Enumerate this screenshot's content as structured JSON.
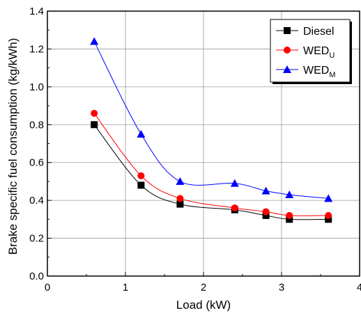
{
  "chart_data": {
    "type": "line",
    "xlabel": "Load (kW)",
    "ylabel": "Brake specific fuel consumption (kg/kWh)",
    "xlim": [
      0,
      4
    ],
    "ylim": [
      0.0,
      1.4
    ],
    "xticks": [
      0,
      1,
      2,
      3,
      4
    ],
    "xtick_labels": [
      "0",
      "1",
      "2",
      "3",
      "4"
    ],
    "yticks": [
      0.0,
      0.2,
      0.4,
      0.6,
      0.8,
      1.0,
      1.2,
      1.4
    ],
    "ytick_labels": [
      "0.0",
      "0.2",
      "0.4",
      "0.6",
      "0.8",
      "1.0",
      "1.2",
      "1.4"
    ],
    "grid": true,
    "legend_position": "top-right",
    "x": [
      0.6,
      1.2,
      1.7,
      2.4,
      2.8,
      3.1,
      3.6
    ],
    "series": [
      {
        "name": "Diesel",
        "name_sub": "",
        "marker": "square",
        "color": "#000000",
        "values": [
          0.8,
          0.48,
          0.38,
          0.35,
          0.32,
          0.3,
          0.3
        ]
      },
      {
        "name": "WED",
        "name_sub": "U",
        "marker": "circle",
        "color": "#ff0000",
        "values": [
          0.86,
          0.53,
          0.41,
          0.36,
          0.34,
          0.32,
          0.32
        ]
      },
      {
        "name": "WED",
        "name_sub": "M",
        "marker": "triangle",
        "color": "#0000ff",
        "values": [
          1.24,
          0.75,
          0.5,
          0.49,
          0.45,
          0.43,
          0.41
        ]
      }
    ]
  }
}
